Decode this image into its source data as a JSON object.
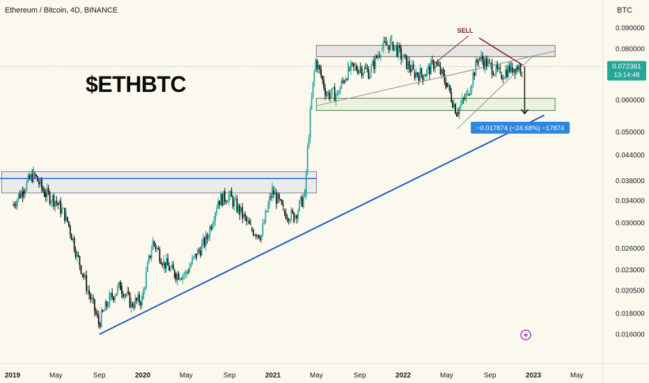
{
  "header": {
    "symbol": "Ethereum / Bitcoin, 4D, BINANCE",
    "unit": "BTC"
  },
  "big_title": "$ETHBTC",
  "chart_data": {
    "type": "candlestick",
    "y_axis_ticks": [
      "0.090000",
      "0.080000",
      "0.072361",
      "0.060000",
      "0.050000",
      "0.044000",
      "0.038000",
      "0.034000",
      "0.030000",
      "0.026000",
      "0.023000",
      "0.020500",
      "0.018000",
      "0.016000"
    ],
    "x_axis_ticks": [
      "2019",
      "May",
      "Sep",
      "2020",
      "May",
      "Sep",
      "2021",
      "May",
      "Sep",
      "2022",
      "May",
      "Sep",
      "2023",
      "May"
    ],
    "bold_x_ticks": [
      "2019",
      "2020",
      "2021",
      "2022",
      "2023"
    ],
    "last_price": "0.072361",
    "countdown": "13:14:48",
    "price_path": [
      [
        "2019-01",
        0.033
      ],
      [
        "2019-02",
        0.036
      ],
      [
        "2019-03",
        0.0395
      ],
      [
        "2019-04",
        0.0355
      ],
      [
        "2019-05",
        0.034
      ],
      [
        "2019-06",
        0.031
      ],
      [
        "2019-07",
        0.025
      ],
      [
        "2019-08",
        0.0205
      ],
      [
        "2019-09",
        0.017
      ],
      [
        "2019-10",
        0.0195
      ],
      [
        "2019-11",
        0.021
      ],
      [
        "2019-12",
        0.019
      ],
      [
        "2020-01",
        0.0195
      ],
      [
        "2020-02",
        0.027
      ],
      [
        "2020-03",
        0.024
      ],
      [
        "2020-04",
        0.0225
      ],
      [
        "2020-05",
        0.0225
      ],
      [
        "2020-06",
        0.025
      ],
      [
        "2020-07",
        0.0275
      ],
      [
        "2020-08",
        0.034
      ],
      [
        "2020-09",
        0.035
      ],
      [
        "2020-10",
        0.032
      ],
      [
        "2020-11",
        0.029
      ],
      [
        "2020-12",
        0.028
      ],
      [
        "2021-01",
        0.036
      ],
      [
        "2021-02",
        0.032
      ],
      [
        "2021-03",
        0.031
      ],
      [
        "2021-04",
        0.035
      ],
      [
        "2021-05",
        0.075
      ],
      [
        "2021-06",
        0.062
      ],
      [
        "2021-07",
        0.062
      ],
      [
        "2021-08",
        0.071
      ],
      [
        "2021-09",
        0.072
      ],
      [
        "2021-10",
        0.07
      ],
      [
        "2021-11",
        0.08
      ],
      [
        "2021-12",
        0.083
      ],
      [
        "2022-01",
        0.076
      ],
      [
        "2022-02",
        0.07
      ],
      [
        "2022-03",
        0.069
      ],
      [
        "2022-04",
        0.074
      ],
      [
        "2022-05",
        0.066
      ],
      [
        "2022-06",
        0.056
      ],
      [
        "2022-07",
        0.062
      ],
      [
        "2022-08",
        0.076
      ],
      [
        "2022-09",
        0.073
      ],
      [
        "2022-10",
        0.069
      ],
      [
        "2022-11",
        0.072
      ],
      [
        "2022-12",
        0.0724
      ]
    ],
    "zones": [
      {
        "name": "resistance-zone",
        "y_top": 0.0815,
        "y_bottom": 0.0765,
        "x_start": "2021-05",
        "x_end": "2023-03"
      },
      {
        "name": "support-zone",
        "y_top": 0.0605,
        "y_bottom": 0.0565,
        "x_start": "2021-05",
        "x_end": "2023-03"
      },
      {
        "name": "old-resistance-zone",
        "y_top": 0.04,
        "y_bottom": 0.0355,
        "x_start": "2018-12",
        "x_end": "2021-05"
      }
    ],
    "annotations": {
      "sell_label": "SELL",
      "measure_label": "−0.017874 (−24.68%) −17874"
    },
    "colors": {
      "up": "#26a69a",
      "down": "#131313",
      "trendline": "#1c56c8",
      "sell": "#7a1a2a",
      "measure": "#2e86de",
      "green_zone": "#4caf50",
      "gray_zone": "#9e9e9e"
    }
  }
}
